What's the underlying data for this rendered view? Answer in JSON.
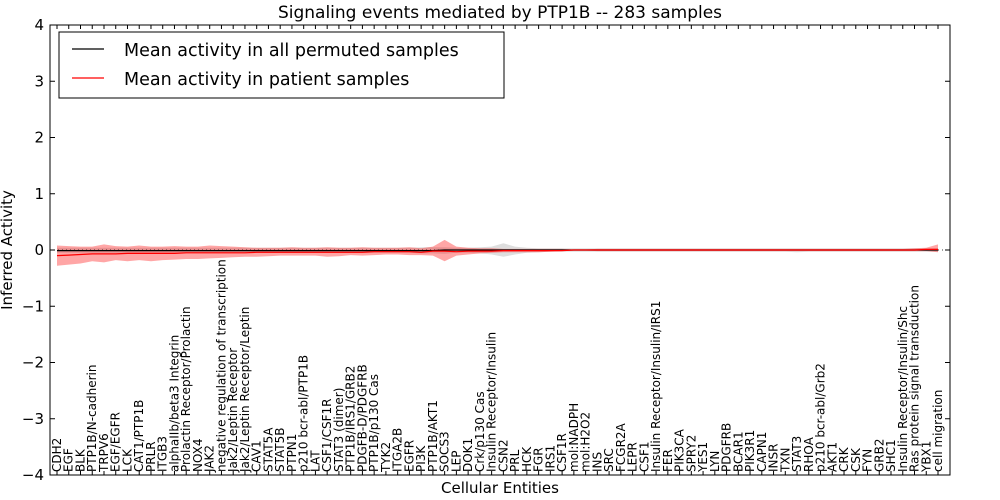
{
  "chart_data": {
    "type": "line",
    "title": "Signaling events mediated by PTP1B -- 283 samples",
    "xlabel": "Cellular Entities",
    "ylabel": "Inferred Activity",
    "ylim": [
      -4,
      4
    ],
    "yticks": [
      -4,
      -3,
      -2,
      -1,
      0,
      1,
      2,
      3,
      4
    ],
    "ytick_labels": [
      "−4",
      "−3",
      "−2",
      "−1",
      "0",
      "1",
      "2",
      "3",
      "4"
    ],
    "legend_position": "top-left",
    "categories": [
      "CDH2",
      "EGF",
      "BLK",
      "PTP1B/N-cadherin",
      "TRPV6",
      "EGF/EGFR",
      "LCK",
      "CAT1/PTP1B",
      "PRLR",
      "ITGB3",
      "alphaIIb/beta3 Integrin",
      "Prolactin Receptor/Prolactin",
      "NOX4",
      "JAK2",
      "negative regulation of transcription",
      "Jak2/Leptin Receptor",
      "Jak2/Leptin Receptor/Leptin",
      "CAV1",
      "STAT5A",
      "STAT5B",
      "PTPN1",
      "p210 bcr-abl/PTP1B",
      "LAT",
      "CSF1/CSF1R",
      "STAT3 (dimer)",
      "PTP1B/IRS1/GRB2",
      "PDGFB-D/PDGFRB",
      "PTP1B/p130 Cas",
      "TYK2",
      "ITGA2B",
      "EGFR",
      "PI3K",
      "PTP1B/AKT1",
      "SOCS3",
      "LEP",
      "DOK1",
      "Crk/p130 Cas",
      "Insulin Receptor/Insulin",
      "CSN2",
      "PRL",
      "HCK",
      "FGR",
      "IRS1",
      "CSF1R",
      "mol:NADPH",
      "mol:H2O2",
      "INS",
      "SRC",
      "FCGR2A",
      "LEPR",
      "CSF1",
      "Insulin Receptor/Insulin/IRS1",
      "FER",
      "PIK3CA",
      "SPRY2",
      "YES1",
      "LYN",
      "PDGFRB",
      "BCAR1",
      "PIK3R1",
      "CAPN1",
      "INSR",
      "TXN",
      "STAT3",
      "RHOA",
      "p210 bcr-abl/Grb2",
      "AKT1",
      "CRK",
      "CSK",
      "FYN",
      "GRB2",
      "SHC1",
      "Insulin Receptor/Insulin/Shc",
      "Ras protein signal transduction",
      "YBX1",
      "cell migration"
    ],
    "series": [
      {
        "name": "Mean activity in all permuted samples",
        "color": "#000000",
        "values": [
          -0.01,
          -0.01,
          -0.01,
          -0.01,
          -0.01,
          -0.01,
          -0.01,
          -0.01,
          -0.01,
          -0.01,
          -0.01,
          -0.01,
          -0.01,
          -0.01,
          -0.01,
          -0.01,
          -0.01,
          -0.01,
          -0.01,
          -0.01,
          -0.01,
          -0.01,
          -0.01,
          -0.01,
          -0.01,
          -0.01,
          -0.01,
          -0.01,
          -0.01,
          -0.01,
          -0.01,
          -0.01,
          -0.01,
          0.0,
          0.0,
          0.0,
          0.0,
          0.0,
          0.0,
          0.0,
          0.0,
          0.0,
          0.0,
          0.0,
          0.0,
          0.0,
          0.0,
          0.0,
          0.0,
          0.0,
          0.0,
          0.0,
          0.0,
          0.0,
          0.0,
          0.0,
          0.0,
          0.0,
          0.0,
          0.0,
          0.0,
          0.0,
          0.0,
          0.0,
          0.0,
          0.0,
          0.0,
          0.0,
          0.0,
          0.0,
          0.0,
          0.0,
          0.0,
          0.0,
          0.0,
          0.0
        ],
        "band_low": [
          -0.05,
          -0.05,
          -0.05,
          -0.05,
          -0.05,
          -0.05,
          -0.05,
          -0.05,
          -0.05,
          -0.05,
          -0.05,
          -0.05,
          -0.05,
          -0.05,
          -0.05,
          -0.05,
          -0.05,
          -0.05,
          -0.05,
          -0.05,
          -0.05,
          -0.05,
          -0.05,
          -0.05,
          -0.05,
          -0.05,
          -0.05,
          -0.05,
          -0.05,
          -0.05,
          -0.05,
          -0.06,
          -0.06,
          -0.07,
          -0.05,
          -0.05,
          -0.06,
          -0.08,
          -0.12,
          -0.08,
          -0.05,
          -0.04,
          -0.03,
          -0.03,
          -0.03,
          -0.03,
          -0.03,
          -0.03,
          -0.03,
          -0.03,
          -0.03,
          -0.03,
          -0.03,
          -0.03,
          -0.03,
          -0.03,
          -0.03,
          -0.03,
          -0.03,
          -0.03,
          -0.03,
          -0.03,
          -0.03,
          -0.04,
          -0.03,
          -0.03,
          -0.03,
          -0.03,
          -0.03,
          -0.03,
          -0.03,
          -0.03,
          -0.03,
          -0.03,
          -0.03,
          -0.03
        ],
        "band_high": [
          0.04,
          0.04,
          0.04,
          0.04,
          0.04,
          0.04,
          0.04,
          0.04,
          0.04,
          0.04,
          0.04,
          0.04,
          0.04,
          0.04,
          0.04,
          0.04,
          0.04,
          0.04,
          0.04,
          0.04,
          0.04,
          0.04,
          0.04,
          0.04,
          0.04,
          0.04,
          0.04,
          0.04,
          0.04,
          0.04,
          0.04,
          0.05,
          0.05,
          0.05,
          0.04,
          0.04,
          0.05,
          0.06,
          0.12,
          0.06,
          0.04,
          0.03,
          0.03,
          0.03,
          0.03,
          0.03,
          0.03,
          0.03,
          0.03,
          0.03,
          0.03,
          0.03,
          0.03,
          0.03,
          0.03,
          0.03,
          0.03,
          0.03,
          0.03,
          0.03,
          0.03,
          0.03,
          0.03,
          0.03,
          0.03,
          0.03,
          0.03,
          0.03,
          0.03,
          0.03,
          0.03,
          0.03,
          0.03,
          0.03,
          0.03,
          0.03
        ]
      },
      {
        "name": "Mean activity in patient samples",
        "color": "#ff0000",
        "values": [
          -0.1,
          -0.09,
          -0.08,
          -0.07,
          -0.07,
          -0.07,
          -0.06,
          -0.06,
          -0.06,
          -0.06,
          -0.06,
          -0.05,
          -0.05,
          -0.05,
          -0.05,
          -0.05,
          -0.05,
          -0.04,
          -0.04,
          -0.04,
          -0.04,
          -0.04,
          -0.04,
          -0.04,
          -0.04,
          -0.04,
          -0.04,
          -0.03,
          -0.03,
          -0.03,
          -0.03,
          -0.04,
          -0.02,
          -0.02,
          -0.03,
          -0.02,
          -0.02,
          -0.02,
          -0.01,
          -0.01,
          -0.01,
          -0.01,
          -0.01,
          -0.01,
          0.0,
          0.0,
          0.0,
          0.0,
          0.0,
          0.0,
          0.0,
          0.0,
          0.0,
          0.0,
          0.0,
          0.0,
          0.0,
          0.0,
          0.0,
          0.0,
          0.0,
          0.0,
          0.0,
          0.0,
          0.0,
          0.0,
          0.0,
          0.0,
          0.0,
          0.0,
          0.0,
          0.0,
          0.0,
          0.0,
          0.01,
          0.01
        ],
        "band_low": [
          -0.28,
          -0.26,
          -0.24,
          -0.2,
          -0.22,
          -0.18,
          -0.2,
          -0.18,
          -0.2,
          -0.18,
          -0.17,
          -0.16,
          -0.16,
          -0.15,
          -0.14,
          -0.13,
          -0.12,
          -0.12,
          -0.11,
          -0.1,
          -0.1,
          -0.1,
          -0.1,
          -0.12,
          -0.11,
          -0.09,
          -0.1,
          -0.09,
          -0.08,
          -0.08,
          -0.09,
          -0.09,
          -0.1,
          -0.2,
          -0.1,
          -0.08,
          -0.06,
          -0.05,
          -0.04,
          -0.04,
          -0.04,
          -0.04,
          -0.03,
          -0.02,
          -0.01,
          -0.01,
          -0.02,
          -0.02,
          -0.02,
          -0.02,
          -0.02,
          -0.02,
          -0.02,
          -0.02,
          -0.02,
          -0.02,
          -0.02,
          -0.02,
          -0.02,
          -0.02,
          -0.02,
          -0.02,
          -0.02,
          -0.02,
          -0.02,
          -0.02,
          -0.02,
          -0.02,
          -0.02,
          -0.02,
          -0.02,
          -0.02,
          -0.02,
          -0.02,
          -0.02,
          -0.04
        ],
        "band_high": [
          0.08,
          0.07,
          0.06,
          0.06,
          0.1,
          0.07,
          0.06,
          0.08,
          0.06,
          0.06,
          0.07,
          0.06,
          0.06,
          0.08,
          0.07,
          0.06,
          0.05,
          0.04,
          0.04,
          0.04,
          0.05,
          0.04,
          0.04,
          0.05,
          0.04,
          0.04,
          0.05,
          0.04,
          0.04,
          0.04,
          0.05,
          0.03,
          0.06,
          0.18,
          0.06,
          0.04,
          0.03,
          0.03,
          0.02,
          0.02,
          0.02,
          0.02,
          0.02,
          0.02,
          0.01,
          0.01,
          0.02,
          0.02,
          0.02,
          0.02,
          0.02,
          0.02,
          0.02,
          0.02,
          0.02,
          0.02,
          0.02,
          0.02,
          0.02,
          0.02,
          0.02,
          0.02,
          0.02,
          0.02,
          0.02,
          0.02,
          0.02,
          0.02,
          0.02,
          0.02,
          0.02,
          0.02,
          0.02,
          0.03,
          0.04,
          0.1
        ]
      }
    ]
  }
}
